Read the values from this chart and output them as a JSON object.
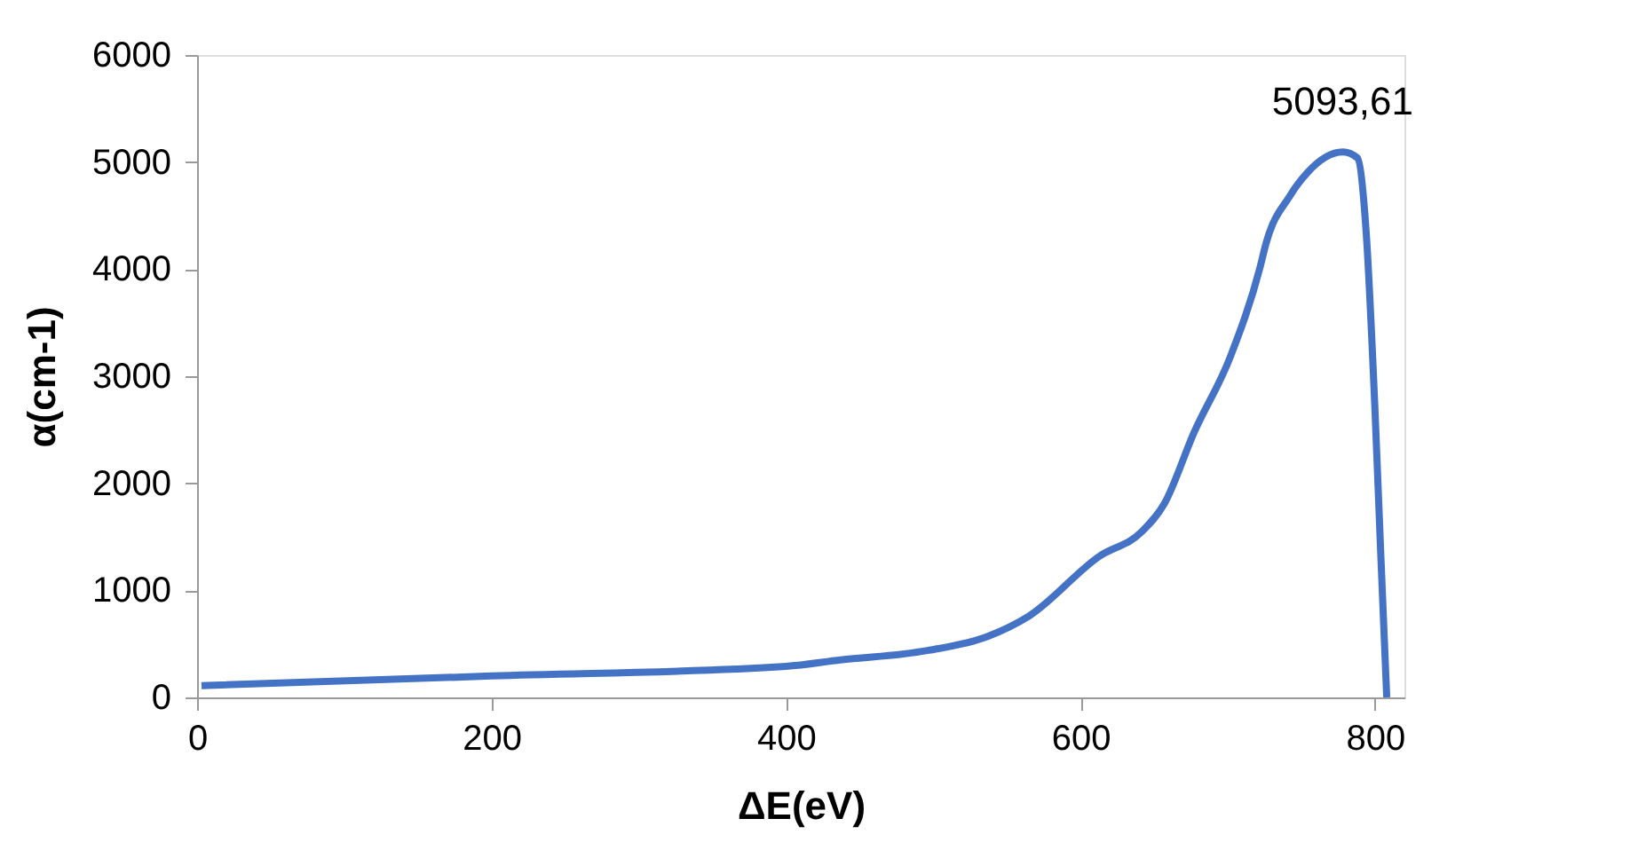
{
  "chart_data": {
    "type": "line",
    "xlabel": "ΔE(eV)",
    "ylabel": "α(cm-1)",
    "x": [
      3,
      200,
      400,
      437,
      497,
      537,
      565,
      613,
      641,
      657,
      677,
      702,
      722,
      726,
      742,
      754,
      778,
      788,
      794,
      800,
      804,
      808
    ],
    "series": [
      {
        "color": "#4472c4",
        "values": [
          110,
          200,
          290,
          350,
          440,
          570,
          760,
          1320,
          1540,
          1810,
          2470,
          3190,
          4020,
          4240,
          4680,
          4900,
          5093.61,
          5040,
          4350,
          2690,
          1320,
          0
        ]
      }
    ],
    "xlim": [
      0,
      820
    ],
    "ylim": [
      0,
      6000
    ],
    "xticks": [
      0,
      200,
      400,
      600,
      800
    ],
    "yticks": [
      0,
      1000,
      2000,
      3000,
      4000,
      5000,
      6000
    ],
    "annotations": [
      {
        "text": "5093,61",
        "x": 778,
        "y": 5093.61
      }
    ],
    "grid": false,
    "marker": "none",
    "line_style": "solid"
  }
}
